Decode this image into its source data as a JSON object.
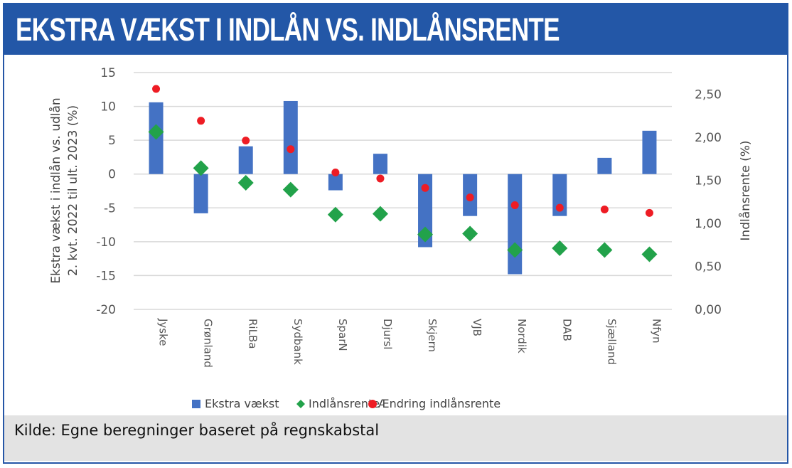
{
  "header": {
    "title": "EKSTRA VÆKST I INDLÅN VS. INDLÅNSRENTE"
  },
  "footer": {
    "source": "Kilde: Egne beregninger baseret på regnskabstal"
  },
  "colors": {
    "brand": "#2357a7",
    "bar": "#4472c4",
    "diamond": "#22a24a",
    "dot": "#ee1c24",
    "source_bg": "#e3e3e3"
  },
  "chart_data": {
    "type": "bar",
    "title": "EKSTRA VÆKST I INDLÅN VS. INDLÅNSRENTE",
    "categories": [
      "Jyske",
      "Grønland",
      "RiLBa",
      "Sydbank",
      "SparN",
      "Djursl",
      "Skjern",
      "VJB",
      "Nordik",
      "DAB",
      "Sjælland",
      "Nfyn"
    ],
    "series": [
      {
        "name": "Ekstra vækst",
        "type": "bar",
        "axis": "left",
        "values": [
          10.6,
          -5.8,
          4.1,
          10.8,
          -2.4,
          3.0,
          -10.8,
          -6.2,
          -14.8,
          -6.2,
          2.4,
          6.4
        ]
      },
      {
        "name": "Indlånsrente",
        "type": "scatter",
        "marker": "diamond",
        "axis": "right",
        "values": [
          2.06,
          1.64,
          1.47,
          1.39,
          1.1,
          1.11,
          0.87,
          0.88,
          0.69,
          0.71,
          0.69,
          0.64
        ]
      },
      {
        "name": "Ændring indlånsrente",
        "type": "scatter",
        "marker": "circle",
        "axis": "right",
        "values": [
          2.56,
          2.19,
          1.96,
          1.86,
          1.59,
          1.52,
          1.41,
          1.3,
          1.21,
          1.18,
          1.16,
          1.12
        ]
      }
    ],
    "ylabel": "Ekstra vækst i indlån vs. udlån 2. kvt. 2022 til ult. 2023 (%)",
    "ylabel_lines": [
      "Ekstra vækst i indlån vs. udlån",
      "2. kvt. 2022 til ult. 2023 (%)"
    ],
    "y2label": "Indlånsrente (%)",
    "ylim": [
      -20,
      15
    ],
    "y2lim": [
      0,
      2.75
    ],
    "yticks": [
      "15",
      "10",
      "5",
      "0",
      "-5",
      "-10",
      "-15",
      "-20"
    ],
    "y2ticks": [
      "2,50",
      "2,00",
      "1,50",
      "1,00",
      "0,50",
      "0,00"
    ],
    "grid": true,
    "legend": [
      "Ekstra vækst",
      "Indlånsrente",
      "Ændring indlånsrente"
    ],
    "legend_position": "bottom"
  }
}
